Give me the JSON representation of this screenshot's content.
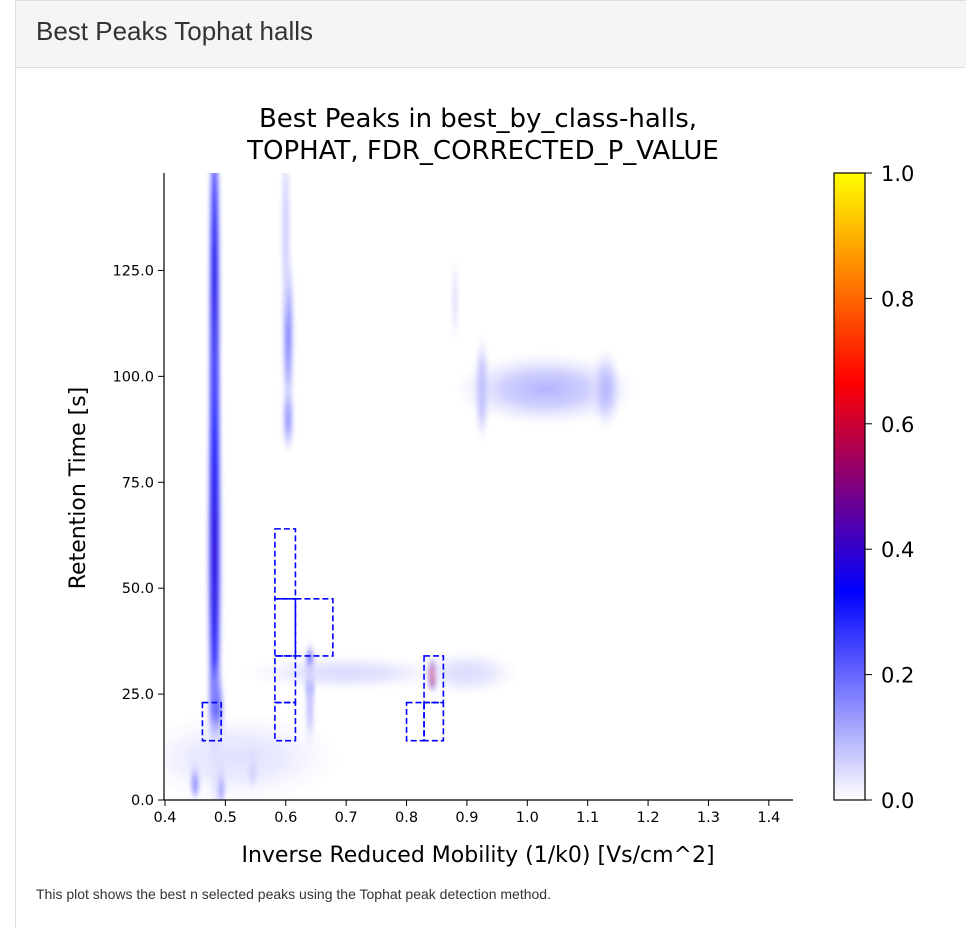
{
  "panel": {
    "title": "Best Peaks Tophat halls"
  },
  "caption": "This plot shows the best n selected peaks using the Tophat peak detection method.",
  "chart_data": {
    "type": "heatmap",
    "title": "Best Peaks in best_by_class-halls,",
    "subtitle": "TOPHAT, FDR_CORRECTED_P_VALUE",
    "xlabel": "Inverse Reduced Mobility (1/k0) [Vs/cm^2]",
    "ylabel": "Retention Time [s]",
    "xlim": [
      0.4,
      1.44
    ],
    "ylim": [
      0.0,
      148.0
    ],
    "xticks": [
      "0.4",
      "0.5",
      "0.6",
      "0.7",
      "0.8",
      "0.9",
      "1.0",
      "1.1",
      "1.2",
      "1.3",
      "1.4"
    ],
    "yticks": [
      "0.0",
      "25.0",
      "50.0",
      "75.0",
      "100.0",
      "125.0"
    ],
    "colorbar": {
      "range": [
        0.0,
        1.0
      ],
      "ticks": [
        "0.0",
        "0.2",
        "0.4",
        "0.6",
        "0.8",
        "1.0"
      ],
      "colormap": [
        "#ffffff",
        "#0000ff",
        "#ff0000",
        "#ffff00"
      ]
    },
    "intensity_regions": [
      {
        "x": 0.482,
        "y": 118.0,
        "sx": 0.005,
        "sy": 28.0,
        "value": 0.38
      },
      {
        "x": 0.482,
        "y": 58.0,
        "sx": 0.006,
        "sy": 30.0,
        "value": 0.4
      },
      {
        "x": 0.485,
        "y": 20.0,
        "sx": 0.007,
        "sy": 6.0,
        "value": 0.22
      },
      {
        "x": 0.45,
        "y": 5.0,
        "sx": 0.004,
        "sy": 2.5,
        "value": 0.35
      },
      {
        "x": 0.493,
        "y": 5.0,
        "sx": 0.004,
        "sy": 3.5,
        "value": 0.28
      },
      {
        "x": 0.545,
        "y": 8.0,
        "sx": 0.004,
        "sy": 2.5,
        "value": 0.4
      },
      {
        "x": 0.604,
        "y": 110.0,
        "sx": 0.005,
        "sy": 10.0,
        "value": 0.18
      },
      {
        "x": 0.6,
        "y": 135.0,
        "sx": 0.004,
        "sy": 12.0,
        "value": 0.08
      },
      {
        "x": 0.604,
        "y": 90.0,
        "sx": 0.005,
        "sy": 4.0,
        "value": 0.15
      },
      {
        "x": 0.64,
        "y": 30.0,
        "sx": 0.004,
        "sy": 3.5,
        "value": 0.4
      },
      {
        "x": 0.64,
        "y": 22.0,
        "sx": 0.004,
        "sy": 5.0,
        "value": 0.1
      },
      {
        "x": 0.7,
        "y": 30.0,
        "sx": 0.08,
        "sy": 2.0,
        "value": 0.05
      },
      {
        "x": 0.843,
        "y": 29.5,
        "sx": 0.004,
        "sy": 2.0,
        "value": 0.68
      },
      {
        "x": 0.9,
        "y": 30.0,
        "sx": 0.04,
        "sy": 2.5,
        "value": 0.05
      },
      {
        "x": 0.925,
        "y": 97.0,
        "sx": 0.006,
        "sy": 6.0,
        "value": 0.12
      },
      {
        "x": 1.03,
        "y": 97.0,
        "sx": 0.07,
        "sy": 4.0,
        "value": 0.1
      },
      {
        "x": 1.13,
        "y": 97.0,
        "sx": 0.012,
        "sy": 4.5,
        "value": 0.1
      },
      {
        "x": 0.88,
        "y": 118.0,
        "sx": 0.003,
        "sy": 5.0,
        "value": 0.05
      },
      {
        "x": 0.52,
        "y": 10.0,
        "sx": 0.08,
        "sy": 5.0,
        "value": 0.04
      }
    ],
    "peak_boxes": [
      {
        "x0": 0.462,
        "x1": 0.493,
        "y0": 14.0,
        "y1": 23.0
      },
      {
        "x0": 0.582,
        "x1": 0.616,
        "y0": 14.0,
        "y1": 23.0
      },
      {
        "x0": 0.582,
        "x1": 0.616,
        "y0": 23.0,
        "y1": 34.0
      },
      {
        "x0": 0.582,
        "x1": 0.616,
        "y0": 34.0,
        "y1": 47.5
      },
      {
        "x0": 0.582,
        "x1": 0.616,
        "y0": 47.5,
        "y1": 64.0
      },
      {
        "x0": 0.616,
        "x1": 0.678,
        "y0": 34.0,
        "y1": 47.5
      },
      {
        "x0": 0.8,
        "x1": 0.829,
        "y0": 14.0,
        "y1": 23.0
      },
      {
        "x0": 0.829,
        "x1": 0.861,
        "y0": 14.0,
        "y1": 23.0
      },
      {
        "x0": 0.829,
        "x1": 0.861,
        "y0": 23.0,
        "y1": 34.0
      }
    ]
  }
}
